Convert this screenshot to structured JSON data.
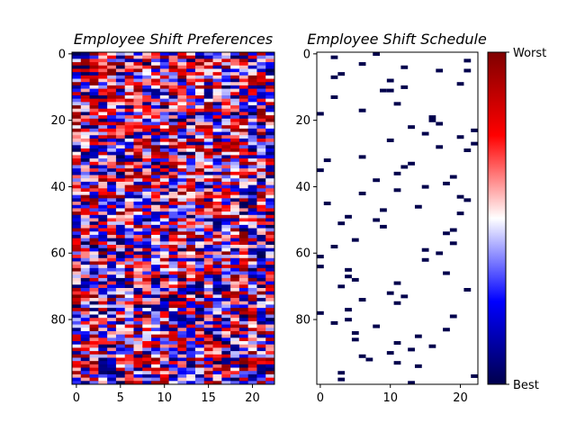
{
  "chart_data": [
    {
      "type": "heatmap",
      "title": "Employee Shift Preferences",
      "rows": 100,
      "cols": 23,
      "x_ticks": [
        0,
        5,
        10,
        15,
        20
      ],
      "y_ticks": [
        0,
        20,
        40,
        60,
        80
      ],
      "colormap": "seismic",
      "value_range": [
        0,
        1
      ],
      "values_note_seed": 7
    },
    {
      "type": "heatmap",
      "title": "Employee Shift Schedule",
      "rows": 100,
      "cols": 23,
      "x_ticks": [
        0,
        10,
        20
      ],
      "y_ticks": [
        0,
        20,
        40,
        60,
        80
      ],
      "assignments": [
        [
          0,
          8
        ],
        [
          1,
          2
        ],
        [
          2,
          21
        ],
        [
          3,
          6
        ],
        [
          4,
          12
        ],
        [
          5,
          17
        ],
        [
          5,
          21
        ],
        [
          6,
          3
        ],
        [
          7,
          2
        ],
        [
          8,
          10
        ],
        [
          9,
          20
        ],
        [
          10,
          12
        ],
        [
          11,
          9
        ],
        [
          11,
          10
        ],
        [
          13,
          2
        ],
        [
          15,
          11
        ],
        [
          17,
          6
        ],
        [
          18,
          0
        ],
        [
          19,
          16
        ],
        [
          20,
          16
        ],
        [
          21,
          17
        ],
        [
          22,
          13
        ],
        [
          23,
          22
        ],
        [
          24,
          15
        ],
        [
          25,
          20
        ],
        [
          26,
          10
        ],
        [
          27,
          22
        ],
        [
          28,
          17
        ],
        [
          29,
          21
        ],
        [
          31,
          6
        ],
        [
          32,
          1
        ],
        [
          33,
          13
        ],
        [
          34,
          12
        ],
        [
          35,
          0
        ],
        [
          36,
          11
        ],
        [
          37,
          19
        ],
        [
          38,
          8
        ],
        [
          39,
          18
        ],
        [
          40,
          15
        ],
        [
          41,
          11
        ],
        [
          42,
          6
        ],
        [
          43,
          20
        ],
        [
          44,
          21
        ],
        [
          45,
          1
        ],
        [
          46,
          14
        ],
        [
          47,
          9
        ],
        [
          48,
          20
        ],
        [
          49,
          4
        ],
        [
          50,
          8
        ],
        [
          51,
          3
        ],
        [
          52,
          9
        ],
        [
          53,
          19
        ],
        [
          54,
          18
        ],
        [
          56,
          5
        ],
        [
          57,
          19
        ],
        [
          58,
          2
        ],
        [
          59,
          15
        ],
        [
          60,
          17
        ],
        [
          61,
          0
        ],
        [
          62,
          15
        ],
        [
          64,
          0
        ],
        [
          65,
          4
        ],
        [
          66,
          18
        ],
        [
          67,
          4
        ],
        [
          68,
          5
        ],
        [
          69,
          11
        ],
        [
          70,
          3
        ],
        [
          71,
          21
        ],
        [
          72,
          10
        ],
        [
          73,
          12
        ],
        [
          74,
          6
        ],
        [
          75,
          11
        ],
        [
          77,
          4
        ],
        [
          78,
          0
        ],
        [
          79,
          19
        ],
        [
          80,
          4
        ],
        [
          81,
          2
        ],
        [
          82,
          8
        ],
        [
          83,
          18
        ],
        [
          84,
          5
        ],
        [
          85,
          14
        ],
        [
          86,
          5
        ],
        [
          87,
          11
        ],
        [
          88,
          16
        ],
        [
          89,
          13
        ],
        [
          90,
          10
        ],
        [
          91,
          6
        ],
        [
          92,
          7
        ],
        [
          93,
          11
        ],
        [
          94,
          14
        ],
        [
          96,
          3
        ],
        [
          97,
          22
        ],
        [
          98,
          3
        ],
        [
          99,
          13
        ]
      ]
    }
  ],
  "colorbar": {
    "colormap": "seismic",
    "top_label": "Worst",
    "bottom_label": "Best"
  }
}
